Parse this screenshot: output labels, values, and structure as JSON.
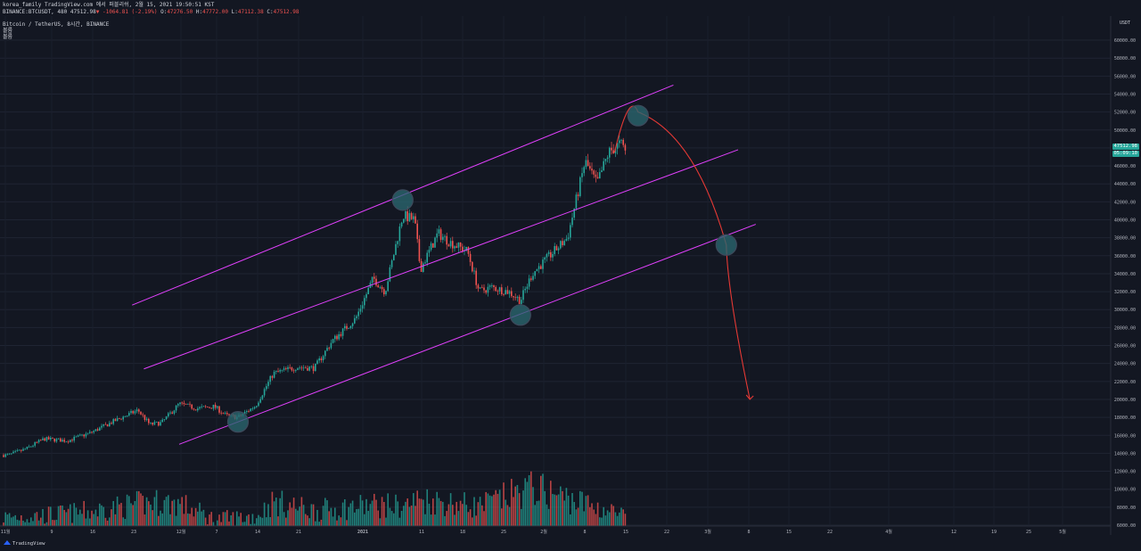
{
  "header": {
    "line1": "korea_family TradingView.com 에서 퍼블리쉬, 2월 15, 2021 19:50:51 KST",
    "symbol": "BINANCE:BTCUSDT, 480",
    "price": "47512.98",
    "arrow": "▼",
    "change": "-1064.81 (-2.19%)",
    "o_label": "O:",
    "o_value": "47276.50",
    "h_label": "H:",
    "h_value": "47772.00",
    "l_label": "L:",
    "l_value": "47112.38",
    "c_label": "C:",
    "c_value": "47512.98"
  },
  "legend": {
    "title": "Bitcoin / TetherUS, 8시간, BINANCE",
    "line2": "볼륨",
    "line3": "볼륨"
  },
  "price_axis": {
    "currency": "USDT",
    "last_price_tag": "47512.98",
    "countdown_tag": "05:09:10",
    "tag_color": "#26a69a"
  },
  "footer": {
    "brand": "TradingView"
  },
  "colors": {
    "background": "#131722",
    "up": "#26a69a",
    "down": "#ef5350",
    "channel": "#e040fb",
    "projection": "#e53935",
    "marker": "#2a6670"
  },
  "chart_data": {
    "type": "candlestick",
    "title": "Bitcoin / TetherUS, 8시간, BINANCE",
    "y_axis": {
      "ticks": [
        6000,
        8000,
        10000,
        12000,
        14000,
        16000,
        18000,
        20000,
        22000,
        24000,
        26000,
        28000,
        30000,
        32000,
        34000,
        36000,
        38000,
        40000,
        42000,
        44000,
        46000,
        48000,
        50000,
        52000,
        54000,
        56000,
        58000,
        60000
      ],
      "ylim": [
        6000,
        61000
      ]
    },
    "x_axis": {
      "ticks": [
        "11월",
        "9",
        "16",
        "23",
        "12월",
        "7",
        "14",
        "21",
        "2021",
        "11",
        "18",
        "25",
        "2월",
        "8",
        "15",
        "22",
        "3월",
        "8",
        "15",
        "22",
        "4월",
        "12",
        "19",
        "25",
        "5월"
      ]
    },
    "price_path": [
      [
        "2020-11-02",
        13800
      ],
      [
        "2020-11-05",
        14500
      ],
      [
        "2020-11-08",
        15600
      ],
      [
        "2020-11-12",
        15400
      ],
      [
        "2020-11-16",
        16300
      ],
      [
        "2020-11-20",
        17600
      ],
      [
        "2020-11-24",
        18800
      ],
      [
        "2020-11-26",
        17200
      ],
      [
        "2020-11-28",
        17400
      ],
      [
        "2020-12-01",
        19500
      ],
      [
        "2020-12-04",
        19000
      ],
      [
        "2020-12-07",
        19200
      ],
      [
        "2020-12-09",
        18200
      ],
      [
        "2020-12-11",
        18000
      ],
      [
        "2020-12-14",
        19300
      ],
      [
        "2020-12-17",
        22900
      ],
      [
        "2020-12-21",
        23600
      ],
      [
        "2020-12-24",
        23500
      ],
      [
        "2020-12-27",
        26500
      ],
      [
        "2020-12-31",
        29000
      ],
      [
        "2021-01-03",
        33500
      ],
      [
        "2021-01-05",
        32000
      ],
      [
        "2021-01-08",
        40500
      ],
      [
        "2021-01-10",
        40000
      ],
      [
        "2021-01-11",
        34500
      ],
      [
        "2021-01-14",
        38500
      ],
      [
        "2021-01-16",
        37500
      ],
      [
        "2021-01-19",
        36500
      ],
      [
        "2021-01-21",
        32000
      ],
      [
        "2021-01-23",
        32500
      ],
      [
        "2021-01-26",
        32000
      ],
      [
        "2021-01-28",
        31000
      ],
      [
        "2021-01-30",
        34000
      ],
      [
        "2021-02-02",
        36000
      ],
      [
        "2021-02-05",
        38000
      ],
      [
        "2021-02-08",
        46500
      ],
      [
        "2021-02-10",
        44000
      ],
      [
        "2021-02-12",
        47500
      ],
      [
        "2021-02-14",
        48500
      ],
      [
        "2021-02-15",
        47513
      ]
    ],
    "volume": [
      [
        "2020-11-02",
        9800
      ],
      [
        "2020-11-09",
        10500
      ],
      [
        "2020-11-16",
        11800
      ],
      [
        "2020-11-23",
        14000
      ],
      [
        "2020-11-27",
        15000
      ],
      [
        "2020-12-01",
        14500
      ],
      [
        "2020-12-07",
        9000
      ],
      [
        "2020-12-14",
        10000
      ],
      [
        "2020-12-17",
        15000
      ],
      [
        "2020-12-24",
        12000
      ],
      [
        "2021-01-03",
        14000
      ],
      [
        "2021-01-08",
        13500
      ],
      [
        "2021-01-11",
        16000
      ],
      [
        "2021-01-21",
        13500
      ],
      [
        "2021-01-30",
        20000
      ],
      [
        "2021-02-08",
        14500
      ],
      [
        "2021-02-15",
        10000
      ]
    ],
    "channel_lines": [
      {
        "from": [
          "2020-11-23",
          30500
        ],
        "to": [
          "2021-02-23",
          55000
        ]
      },
      {
        "from": [
          "2020-11-25",
          23400
        ],
        "to": [
          "2021-03-06",
          47800
        ]
      },
      {
        "from": [
          "2020-12-01",
          15000
        ],
        "to": [
          "2021-03-09",
          39500
        ]
      }
    ],
    "markers": [
      [
        "2020-12-11",
        17500
      ],
      [
        "2021-01-08",
        42200
      ],
      [
        "2021-01-28",
        29400
      ],
      [
        "2021-02-17",
        51600
      ],
      [
        "2021-03-04",
        37200
      ]
    ],
    "projection_curve": [
      [
        "2021-02-13",
        47500
      ],
      [
        "2021-02-17",
        52000
      ],
      [
        "2021-03-01",
        44000
      ],
      [
        "2021-03-04",
        37200
      ],
      [
        "2021-03-08",
        20000
      ]
    ]
  }
}
